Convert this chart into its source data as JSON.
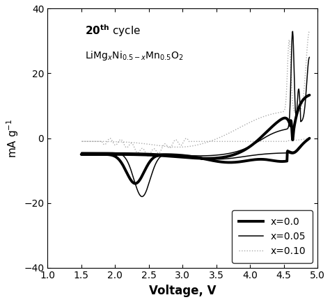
{
  "xlabel": "Voltage, V",
  "ylabel": "mA g$^{-1}$",
  "xlim": [
    1.0,
    5.0
  ],
  "ylim": [
    -40,
    40
  ],
  "xticks": [
    1.0,
    1.5,
    2.0,
    2.5,
    3.0,
    3.5,
    4.0,
    4.5,
    5.0
  ],
  "yticks": [
    -40,
    -20,
    0,
    20,
    40
  ],
  "legend_labels": [
    "x=0.0",
    "x=0.05",
    "x=0.10"
  ],
  "background_color": "#ffffff",
  "line_color_thick": "#000000",
  "line_color_thin": "#000000",
  "line_color_dot": "#aaaaaa"
}
